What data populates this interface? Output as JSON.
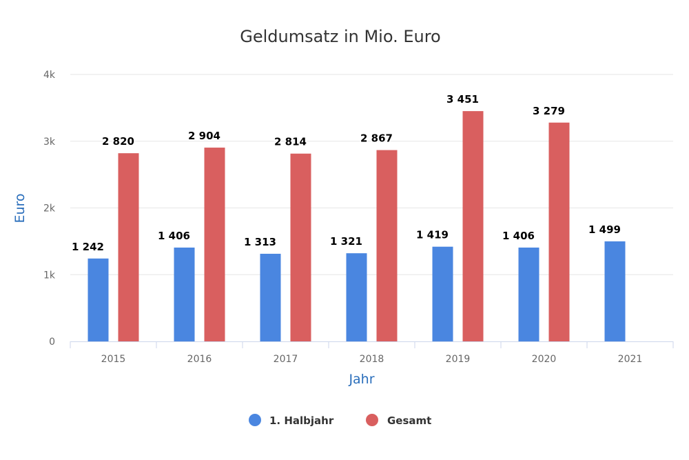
{
  "chart_data": {
    "type": "bar",
    "title": "Geldumsatz in Mio. Euro",
    "xlabel": "Jahr",
    "ylabel": "Euro",
    "categories": [
      "2015",
      "2016",
      "2017",
      "2018",
      "2019",
      "2020",
      "2021"
    ],
    "ylim": [
      0,
      4000
    ],
    "yticks": [
      0,
      1000,
      2000,
      3000,
      4000
    ],
    "ytick_labels": [
      "0",
      "1k",
      "2k",
      "3k",
      "4k"
    ],
    "grid": true,
    "legend": "bottom",
    "series": [
      {
        "name": "1. Halbjahr",
        "color": "#4a86e0",
        "values": [
          1242,
          1406,
          1313,
          1321,
          1419,
          1406,
          1499
        ],
        "labels": [
          "1 242",
          "1 406",
          "1 313",
          "1 321",
          "1 419",
          "1 406",
          "1 499"
        ]
      },
      {
        "name": "Gesamt",
        "color": "#d95f5f",
        "values": [
          2820,
          2904,
          2814,
          2867,
          3451,
          3279,
          null
        ],
        "labels": [
          "2 820",
          "2 904",
          "2 814",
          "2 867",
          "3 451",
          "3 279",
          null
        ]
      }
    ]
  }
}
